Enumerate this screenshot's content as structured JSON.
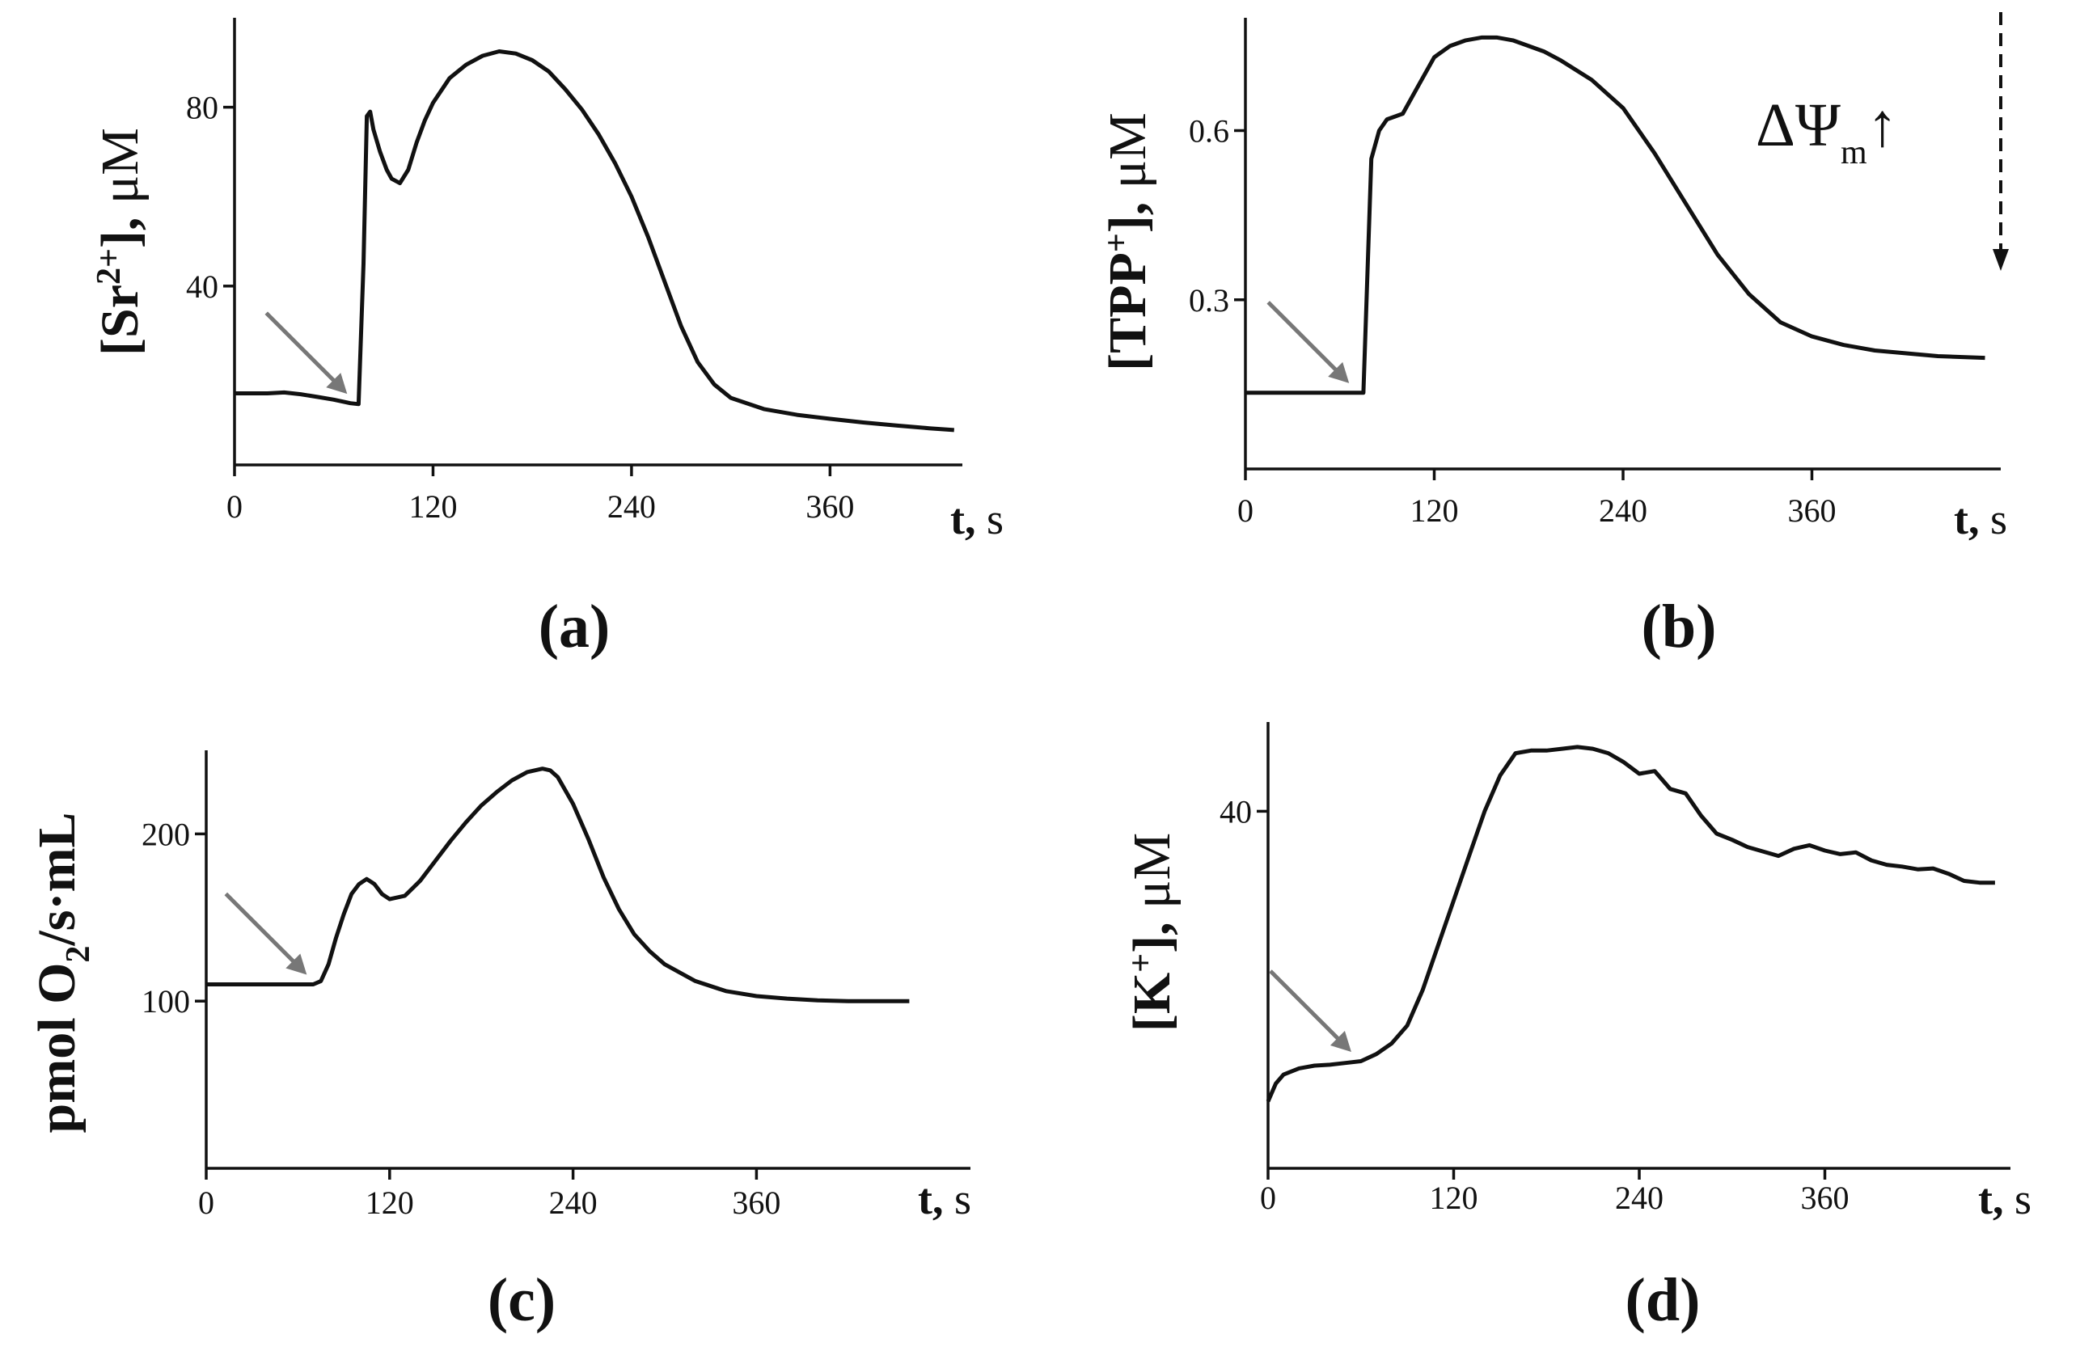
{
  "chart_data": [
    {
      "panel_label": "(a)",
      "type": "line",
      "ylabel_main": "[Sr",
      "ylabel_sup": "2+",
      "ylabel_tail": "], ",
      "ylabel_unit": "μM",
      "xlabel_bold": "t,",
      "xlabel_unit": " s",
      "xlim": [
        0,
        440
      ],
      "ylim": [
        0,
        100
      ],
      "xticks": [
        0,
        120,
        240,
        360
      ],
      "yticks": [
        40,
        80
      ],
      "x": [
        0,
        10,
        20,
        30,
        40,
        50,
        60,
        70,
        75,
        78,
        80,
        82,
        84,
        88,
        92,
        95,
        100,
        105,
        110,
        115,
        120,
        130,
        140,
        150,
        160,
        170,
        180,
        190,
        200,
        210,
        220,
        230,
        240,
        250,
        260,
        270,
        280,
        290,
        300,
        320,
        340,
        360,
        380,
        400,
        420,
        435
      ],
      "y": [
        16,
        16,
        16,
        16.2,
        15.8,
        15.2,
        14.6,
        13.8,
        13.6,
        45,
        78,
        79,
        75,
        70,
        66,
        64,
        63,
        66,
        72,
        77,
        81,
        86.5,
        89.5,
        91.5,
        92.5,
        92,
        90.5,
        88,
        84,
        79.5,
        74,
        67.5,
        60,
        51,
        41,
        31,
        23,
        18,
        15,
        12.5,
        11.2,
        10.3,
        9.5,
        8.8,
        8.2,
        7.8
      ],
      "markers": [
        {
          "label": "addition-arrow",
          "x": 72
        }
      ]
    },
    {
      "panel_label": "(b)",
      "type": "line",
      "ylabel_main": "[TPP",
      "ylabel_sup": "+",
      "ylabel_tail": "], ",
      "ylabel_unit": "μM",
      "xlabel_bold": "t,",
      "xlabel_unit": " s",
      "annotation_main": "ΔΨ",
      "annotation_sub": "m",
      "annotation_arrow": "↑",
      "xlim": [
        0,
        480
      ],
      "ylim": [
        0,
        0.8
      ],
      "xticks": [
        0,
        120,
        240,
        360
      ],
      "yticks": [
        0.3,
        0.6
      ],
      "x": [
        0,
        20,
        40,
        60,
        70,
        75,
        77,
        80,
        85,
        90,
        95,
        100,
        110,
        120,
        130,
        140,
        150,
        160,
        170,
        180,
        190,
        200,
        220,
        240,
        260,
        280,
        300,
        320,
        340,
        360,
        380,
        400,
        420,
        440,
        470
      ],
      "y": [
        0.135,
        0.135,
        0.135,
        0.135,
        0.135,
        0.135,
        0.3,
        0.55,
        0.6,
        0.62,
        0.625,
        0.63,
        0.68,
        0.73,
        0.75,
        0.76,
        0.765,
        0.765,
        0.76,
        0.75,
        0.74,
        0.725,
        0.69,
        0.64,
        0.56,
        0.47,
        0.38,
        0.31,
        0.26,
        0.235,
        0.22,
        0.21,
        0.205,
        0.2,
        0.197
      ],
      "markers": [
        {
          "label": "addition-arrow",
          "x": 70
        }
      ]
    },
    {
      "panel_label": "(c)",
      "type": "line",
      "ylabel_main": "pmol O",
      "ylabel_sub": "2",
      "ylabel_tail": "/s·mL",
      "xlabel_bold": "t,",
      "xlabel_unit": " s",
      "xlim": [
        0,
        500
      ],
      "ylim": [
        0,
        250
      ],
      "xticks": [
        0,
        120,
        240,
        360
      ],
      "yticks": [
        100,
        200
      ],
      "x": [
        0,
        20,
        40,
        60,
        70,
        75,
        80,
        85,
        90,
        95,
        100,
        105,
        110,
        115,
        120,
        130,
        140,
        150,
        160,
        170,
        180,
        190,
        200,
        210,
        220,
        225,
        230,
        240,
        250,
        260,
        270,
        280,
        290,
        300,
        320,
        340,
        360,
        380,
        400,
        420,
        440,
        460
      ],
      "y": [
        110,
        110,
        110,
        110,
        110,
        112,
        122,
        138,
        152,
        164,
        170,
        173,
        170,
        164,
        161,
        163,
        172,
        184,
        196,
        207,
        217,
        225,
        232,
        237,
        239,
        238,
        234,
        218,
        197,
        174,
        155,
        140,
        130,
        122,
        112,
        106,
        103,
        101.5,
        100.5,
        100,
        100,
        100
      ],
      "markers": [
        {
          "label": "addition-arrow",
          "x": 70
        }
      ]
    },
    {
      "panel_label": "(d)",
      "type": "line",
      "ylabel_main": "[K",
      "ylabel_sup": "+",
      "ylabel_tail": "], ",
      "ylabel_unit": "μM",
      "xlabel_bold": "t,",
      "xlabel_unit": " s",
      "xlim": [
        0,
        480
      ],
      "ylim": [
        0,
        50
      ],
      "xticks": [
        0,
        120,
        240,
        360
      ],
      "yticks": [
        40
      ],
      "x": [
        0,
        5,
        10,
        20,
        30,
        40,
        50,
        60,
        70,
        80,
        90,
        100,
        110,
        120,
        130,
        140,
        150,
        160,
        170,
        180,
        190,
        200,
        210,
        220,
        230,
        240,
        250,
        260,
        270,
        280,
        290,
        300,
        310,
        320,
        330,
        340,
        350,
        360,
        370,
        380,
        390,
        400,
        410,
        420,
        430,
        440,
        450,
        460,
        470
      ],
      "y": [
        7.5,
        9.5,
        10.5,
        11.2,
        11.5,
        11.6,
        11.8,
        12,
        12.8,
        14,
        16,
        20,
        25,
        30,
        35,
        40,
        44,
        46.5,
        46.8,
        46.8,
        47,
        47.2,
        47,
        46.5,
        45.5,
        44.2,
        44.5,
        42.5,
        42,
        39.5,
        37.5,
        36.8,
        36,
        35.5,
        35,
        35.8,
        36.2,
        35.6,
        35.2,
        35.4,
        34.5,
        34,
        33.8,
        33.5,
        33.6,
        33,
        32.2,
        32,
        32
      ],
      "markers": [
        {
          "label": "addition-arrow",
          "x": 58
        }
      ]
    }
  ]
}
